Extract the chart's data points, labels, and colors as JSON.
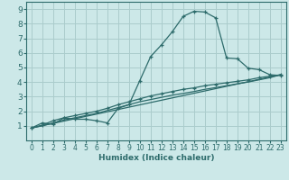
{
  "bg_color": "#cce8e8",
  "grid_color": "#aacccc",
  "line_color": "#2d6b6b",
  "xlabel": "Humidex (Indice chaleur)",
  "xlim": [
    -0.5,
    23.5
  ],
  "ylim": [
    0,
    9.5
  ],
  "xticks": [
    0,
    1,
    2,
    3,
    4,
    5,
    6,
    7,
    8,
    9,
    10,
    11,
    12,
    13,
    14,
    15,
    16,
    17,
    18,
    19,
    20,
    21,
    22,
    23
  ],
  "yticks": [
    1,
    2,
    3,
    4,
    5,
    6,
    7,
    8,
    9
  ],
  "line1_x": [
    0,
    1,
    2,
    3,
    4,
    5,
    6,
    7,
    8,
    9,
    10,
    11,
    12,
    13,
    14,
    15,
    16,
    17,
    18,
    19,
    20,
    21,
    22,
    23
  ],
  "line1_y": [
    0.85,
    1.2,
    1.1,
    1.55,
    1.45,
    1.45,
    1.35,
    1.2,
    2.2,
    2.45,
    4.1,
    5.75,
    6.55,
    7.45,
    8.5,
    8.85,
    8.8,
    8.4,
    5.65,
    5.6,
    4.95,
    4.85,
    4.5,
    4.45
  ],
  "line2_x": [
    0,
    1,
    2,
    3,
    4,
    5,
    6,
    7,
    8,
    9,
    10,
    11,
    12,
    13,
    14,
    15,
    16,
    17,
    18,
    19,
    20,
    21,
    22,
    23
  ],
  "line2_y": [
    0.85,
    1.05,
    1.35,
    1.55,
    1.7,
    1.85,
    2.0,
    2.2,
    2.45,
    2.65,
    2.85,
    3.05,
    3.2,
    3.35,
    3.5,
    3.6,
    3.75,
    3.85,
    3.95,
    4.05,
    4.15,
    4.3,
    4.4,
    4.5
  ],
  "line3_x": [
    0,
    1,
    2,
    3,
    4,
    5,
    6,
    7,
    8,
    9,
    10,
    11,
    12,
    13,
    14,
    15,
    16,
    17,
    18,
    19,
    20,
    21,
    22,
    23
  ],
  "line3_y": [
    0.85,
    1.0,
    1.2,
    1.4,
    1.55,
    1.7,
    1.85,
    2.05,
    2.25,
    2.45,
    2.65,
    2.8,
    2.95,
    3.1,
    3.22,
    3.35,
    3.5,
    3.62,
    3.75,
    3.88,
    4.0,
    4.15,
    4.3,
    4.5
  ],
  "line4_x": [
    0,
    23
  ],
  "line4_y": [
    0.85,
    4.5
  ]
}
